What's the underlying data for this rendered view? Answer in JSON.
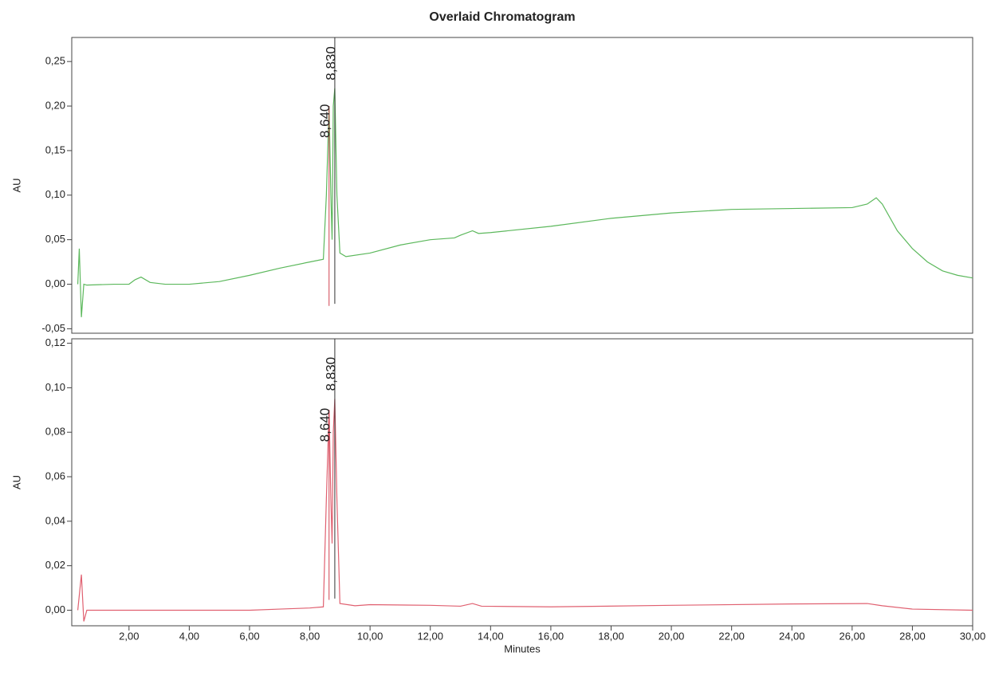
{
  "chart_data": [
    {
      "type": "line",
      "title": "Overlaid Chromatogram",
      "ylabel": "AU",
      "xlim": [
        0.1,
        30
      ],
      "ylim": [
        -0.055,
        0.277
      ],
      "yticks": [
        {
          "value": -0.05,
          "label": "-0,05"
        },
        {
          "value": 0,
          "label": "0,00"
        },
        {
          "value": 0.05,
          "label": "0,05"
        },
        {
          "value": 0.1,
          "label": "0,10"
        },
        {
          "value": 0.15,
          "label": "0,15"
        },
        {
          "value": 0.2,
          "label": "0,20"
        },
        {
          "value": 0.25,
          "label": "0,25"
        }
      ],
      "annotations": [
        {
          "value": 8.64,
          "label": "8,640"
        },
        {
          "value": 8.83,
          "label": "8,830"
        }
      ],
      "x": [
        0.3,
        0.35,
        0.42,
        0.5,
        0.6,
        1.5,
        2.0,
        2.2,
        2.4,
        2.7,
        3.2,
        4,
        5,
        6,
        7,
        8,
        8.45,
        8.55,
        8.64,
        8.7,
        8.74,
        8.78,
        8.83,
        8.9,
        9.0,
        9.2,
        10,
        11,
        12,
        12.8,
        13,
        13.4,
        13.6,
        14,
        16,
        18,
        20,
        22,
        24,
        26,
        26.5,
        26.8,
        27,
        27.5,
        28,
        28.5,
        29,
        29.5,
        30
      ],
      "series": [
        {
          "color": "#5cb85c",
          "values": [
            0.0,
            0.04,
            -0.037,
            0.0,
            -0.001,
            0.0,
            0.0,
            0.005,
            0.008,
            0.002,
            0.0,
            0.0,
            0.003,
            0.01,
            0.018,
            0.025,
            0.028,
            0.1,
            0.2,
            0.1,
            0.05,
            0.2,
            0.22,
            0.1,
            0.035,
            0.031,
            0.035,
            0.044,
            0.05,
            0.052,
            0.055,
            0.06,
            0.057,
            0.058,
            0.065,
            0.074,
            0.08,
            0.084,
            0.085,
            0.086,
            0.09,
            0.097,
            0.09,
            0.06,
            0.04,
            0.025,
            0.015,
            0.01,
            0.007
          ]
        }
      ]
    },
    {
      "type": "line",
      "ylabel": "AU",
      "xlabel": "Minutes",
      "xlim": [
        0.1,
        30
      ],
      "ylim": [
        -0.007,
        0.122
      ],
      "xticks": [
        {
          "value": 2,
          "label": "2,00"
        },
        {
          "value": 4,
          "label": "4,00"
        },
        {
          "value": 6,
          "label": "6,00"
        },
        {
          "value": 8,
          "label": "8,00"
        },
        {
          "value": 10,
          "label": "10,00"
        },
        {
          "value": 12,
          "label": "12,00"
        },
        {
          "value": 14,
          "label": "14,00"
        },
        {
          "value": 16,
          "label": "16,00"
        },
        {
          "value": 18,
          "label": "18,00"
        },
        {
          "value": 20,
          "label": "20,00"
        },
        {
          "value": 22,
          "label": "22,00"
        },
        {
          "value": 24,
          "label": "24,00"
        },
        {
          "value": 26,
          "label": "26,00"
        },
        {
          "value": 28,
          "label": "28,00"
        },
        {
          "value": 30,
          "label": "30,00"
        }
      ],
      "yticks": [
        {
          "value": 0,
          "label": "0,00"
        },
        {
          "value": 0.02,
          "label": "0,02"
        },
        {
          "value": 0.04,
          "label": "0,04"
        },
        {
          "value": 0.06,
          "label": "0,06"
        },
        {
          "value": 0.08,
          "label": "0,08"
        },
        {
          "value": 0.1,
          "label": "0,10"
        },
        {
          "value": 0.12,
          "label": "0,12"
        }
      ],
      "annotations": [
        {
          "value": 8.64,
          "label": "8,640"
        },
        {
          "value": 8.83,
          "label": "8,830"
        }
      ],
      "x": [
        0.3,
        0.42,
        0.5,
        0.6,
        2,
        6,
        7,
        8,
        8.45,
        8.55,
        8.64,
        8.7,
        8.74,
        8.78,
        8.83,
        8.9,
        9.0,
        9.5,
        10,
        12,
        13,
        13.4,
        13.7,
        16,
        20,
        24,
        26.5,
        27,
        28,
        30
      ],
      "series": [
        {
          "color": "#e06070",
          "values": [
            0.0,
            0.016,
            -0.005,
            0.0,
            0.0,
            0.0,
            0.0005,
            0.001,
            0.0015,
            0.05,
            0.09,
            0.05,
            0.03,
            0.08,
            0.095,
            0.05,
            0.003,
            0.002,
            0.0025,
            0.0022,
            0.0018,
            0.003,
            0.0018,
            0.0015,
            0.0022,
            0.0028,
            0.003,
            0.002,
            0.0005,
            0.0
          ]
        }
      ]
    }
  ]
}
